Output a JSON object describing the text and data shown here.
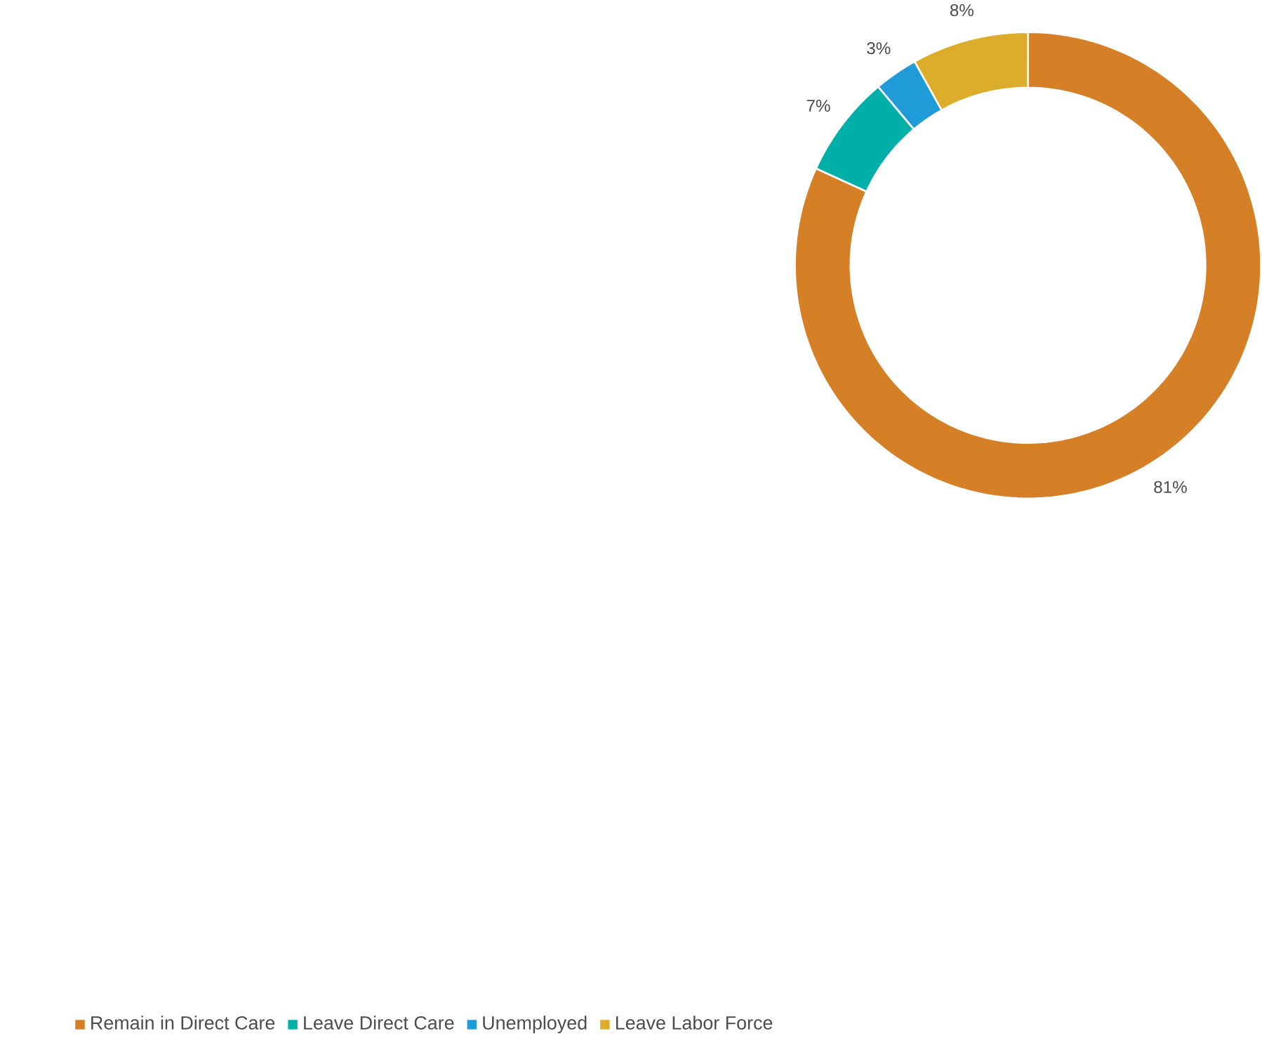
{
  "chart_data": {
    "type": "donut",
    "categories": [
      "Remain in Direct Care",
      "Leave Direct Care",
      "Unemployed",
      "Leave Labor Force"
    ],
    "values": [
      81,
      7,
      3,
      8
    ],
    "colors": [
      "#d57f27",
      "#00b0a8",
      "#1f9bd7",
      "#dcad2a"
    ],
    "value_labels": [
      "81%",
      "7%",
      "3%",
      "8%"
    ],
    "legend": "bottom"
  }
}
